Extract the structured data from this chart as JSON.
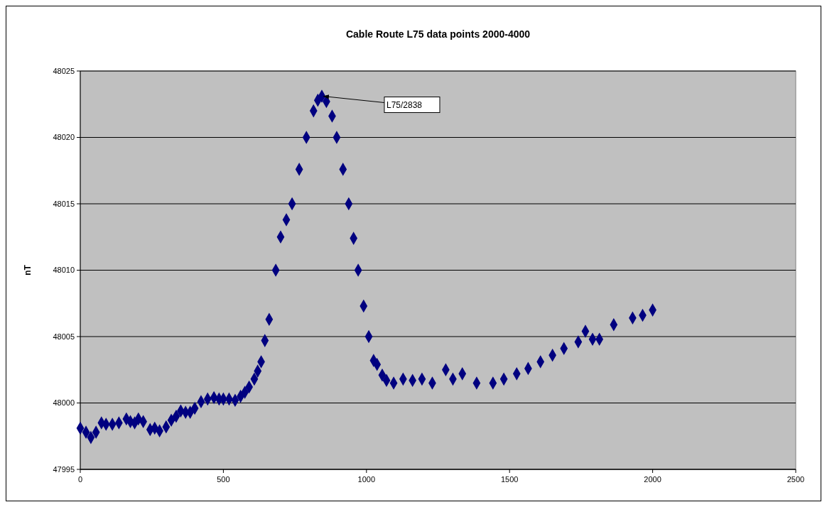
{
  "chart_data": {
    "type": "scatter",
    "title": "Cable Route L75 data points 2000-4000",
    "ylabel": "nT",
    "x": [
      0,
      20,
      37,
      55,
      74,
      90,
      112,
      135,
      161,
      175,
      190,
      203,
      220,
      244,
      260,
      277,
      300,
      318,
      335,
      351,
      368,
      384,
      400,
      422,
      445,
      467,
      485,
      500,
      520,
      541,
      560,
      575,
      590,
      608,
      620,
      632,
      645,
      660,
      683,
      700,
      720,
      740,
      765,
      790,
      815,
      830,
      844,
      860,
      880,
      896,
      918,
      938,
      955,
      971,
      990,
      1008,
      1025,
      1037,
      1055,
      1070,
      1095,
      1128,
      1161,
      1194,
      1230,
      1277,
      1302,
      1335,
      1385,
      1442,
      1480,
      1525,
      1565,
      1608,
      1650,
      1690,
      1740,
      1765,
      1790,
      1814,
      1864,
      1930,
      1965,
      2000
    ],
    "series": [
      {
        "color": "#000080",
        "values": [
          47998.1,
          47997.8,
          47997.4,
          47997.8,
          47998.5,
          47998.4,
          47998.4,
          47998.5,
          47998.8,
          47998.6,
          47998.5,
          47998.8,
          47998.6,
          47998.0,
          47998.1,
          47997.9,
          47998.2,
          47998.7,
          47999.0,
          47999.4,
          47999.3,
          47999.3,
          47999.6,
          48000.1,
          48000.3,
          48000.4,
          48000.3,
          48000.3,
          48000.3,
          48000.2,
          48000.5,
          48000.8,
          48001.2,
          48001.8,
          48002.4,
          48003.1,
          48004.7,
          48006.3,
          48010,
          48012.5,
          48013.8,
          48015,
          48017.6,
          48020,
          48022,
          48022.8,
          48023.1,
          48022.7,
          48021.6,
          48020,
          48017.6,
          48015,
          48012.4,
          48010,
          48007.3,
          48005,
          48003.2,
          48002.9,
          48002.1,
          48001.7,
          48001.5,
          48001.8,
          48001.7,
          48001.8,
          48001.5,
          48002.5,
          48001.8,
          48002.2,
          48001.5,
          48001.5,
          48001.8,
          48002.2,
          48002.6,
          48003.1,
          48003.6,
          48004.1,
          48004.6,
          48005.4,
          48004.8,
          48004.8,
          48005.9,
          48006.4,
          48006.6,
          48007.0
        ]
      }
    ],
    "xlim": [
      0,
      2500
    ],
    "xticks": [
      0,
      500,
      1000,
      1500,
      2000,
      2500
    ],
    "ylim": [
      47995,
      48025
    ],
    "yticks": [
      47995,
      48000,
      48005,
      48010,
      48015,
      48020,
      48025
    ],
    "grid": "y",
    "marker": "diamond",
    "annotations": [
      {
        "text": "L75/2838",
        "x": 844,
        "y": 48023.1
      }
    ]
  }
}
